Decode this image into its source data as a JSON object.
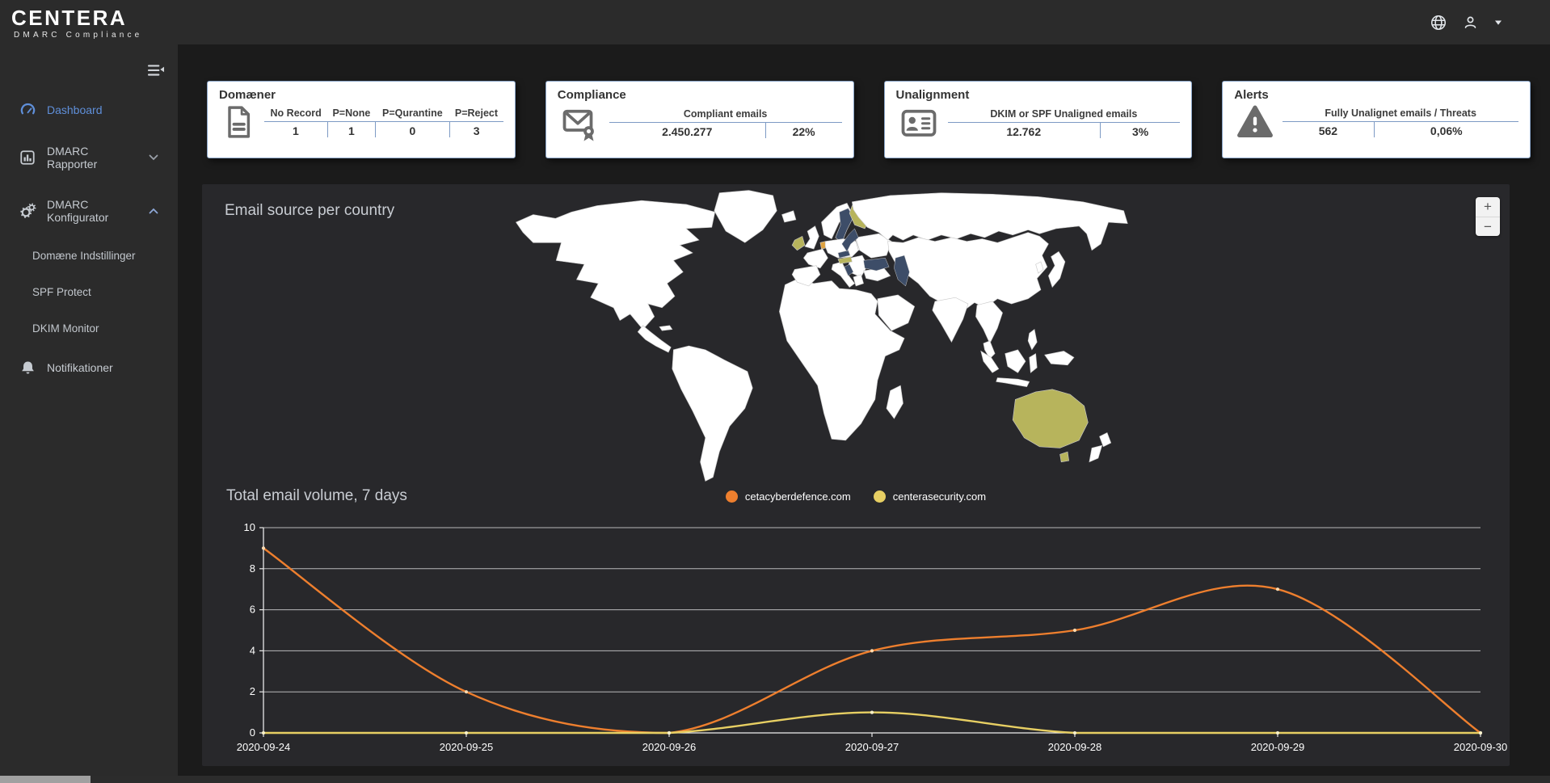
{
  "brand": {
    "name": "CENTERA",
    "subtitle": "DMARC Compliance"
  },
  "topbar": {
    "icons": [
      {
        "name": "globe-icon"
      },
      {
        "name": "user-icon"
      },
      {
        "name": "caret-down-icon"
      }
    ]
  },
  "sidebar": {
    "collapse_icon": "collapse-menu-icon",
    "items": [
      {
        "id": "dashboard",
        "label": "Dashboard",
        "icon": "dashboard-icon",
        "active": true
      },
      {
        "id": "dmarc-rapporter",
        "label": "DMARC Rapporter",
        "icon": "bar-chart-icon",
        "chevron": "down"
      },
      {
        "id": "dmarc-konfigurator",
        "label": "DMARC Konfigurator",
        "icon": "gears-icon",
        "chevron": "up",
        "expanded": true,
        "children": [
          {
            "id": "domaene-indstillinger",
            "label": "Domæne Indstillinger"
          },
          {
            "id": "spf-protect",
            "label": "SPF Protect"
          },
          {
            "id": "dkim-monitor",
            "label": "DKIM Monitor"
          }
        ]
      },
      {
        "id": "notifikationer",
        "label": "Notifikationer",
        "icon": "bell-icon"
      }
    ]
  },
  "cards": [
    {
      "title": "Domæner",
      "icon": "document-icon",
      "headers": [
        "No Record",
        "P=None",
        "P=Qurantine",
        "P=Reject"
      ],
      "values": [
        "1",
        "1",
        "0",
        "3"
      ]
    },
    {
      "title": "Compliance",
      "icon": "envelope-seal-icon",
      "headers": [
        "Compliant emails"
      ],
      "values": [
        "2.450.277",
        "22%"
      ]
    },
    {
      "title": "Unalignment",
      "icon": "id-card-icon",
      "headers": [
        "DKIM or SPF Unaligned emails"
      ],
      "values": [
        "12.762",
        "3%"
      ]
    },
    {
      "title": "Alerts",
      "icon": "warning-icon",
      "headers": [
        "Fully Unalignet emails / Threats"
      ],
      "values": [
        "562",
        "0,06%"
      ]
    }
  ],
  "map": {
    "title": "Email source per country",
    "zoom_in_label": "+",
    "zoom_out_label": "−",
    "country_color": "#ffffff",
    "sea_color": "#3d4d68",
    "highlights": {
      "australia": "#b7b45c",
      "tasmania": "#b7b45c",
      "finland": "#b7b45c",
      "ireland": "#b7b45c",
      "austria": "#b7b45c",
      "netherlands": "#dfa23f",
      "sweden": "#3d4d68",
      "czech": "#3d4d68"
    }
  },
  "chart_data": {
    "type": "line",
    "title": "Total email volume, 7 days",
    "x": [
      "2020-09-24",
      "2020-09-25",
      "2020-09-26",
      "2020-09-27",
      "2020-09-28",
      "2020-09-29",
      "2020-09-30"
    ],
    "series": [
      {
        "name": "cetacyberdefence.com",
        "color": "#ee7f2e",
        "dot_color": "#ffdfb5",
        "values": [
          9,
          2,
          0,
          4,
          5,
          7,
          0
        ]
      },
      {
        "name": "centerasecurity.com",
        "color": "#e7cf63",
        "dot_color": "#fbf3cd",
        "values": [
          0,
          0,
          0,
          1,
          0,
          0,
          0
        ]
      }
    ],
    "ylim": [
      0,
      10
    ],
    "yticks": [
      0,
      2,
      4,
      6,
      8,
      10
    ],
    "grid": true,
    "legend_position": "top-center"
  }
}
